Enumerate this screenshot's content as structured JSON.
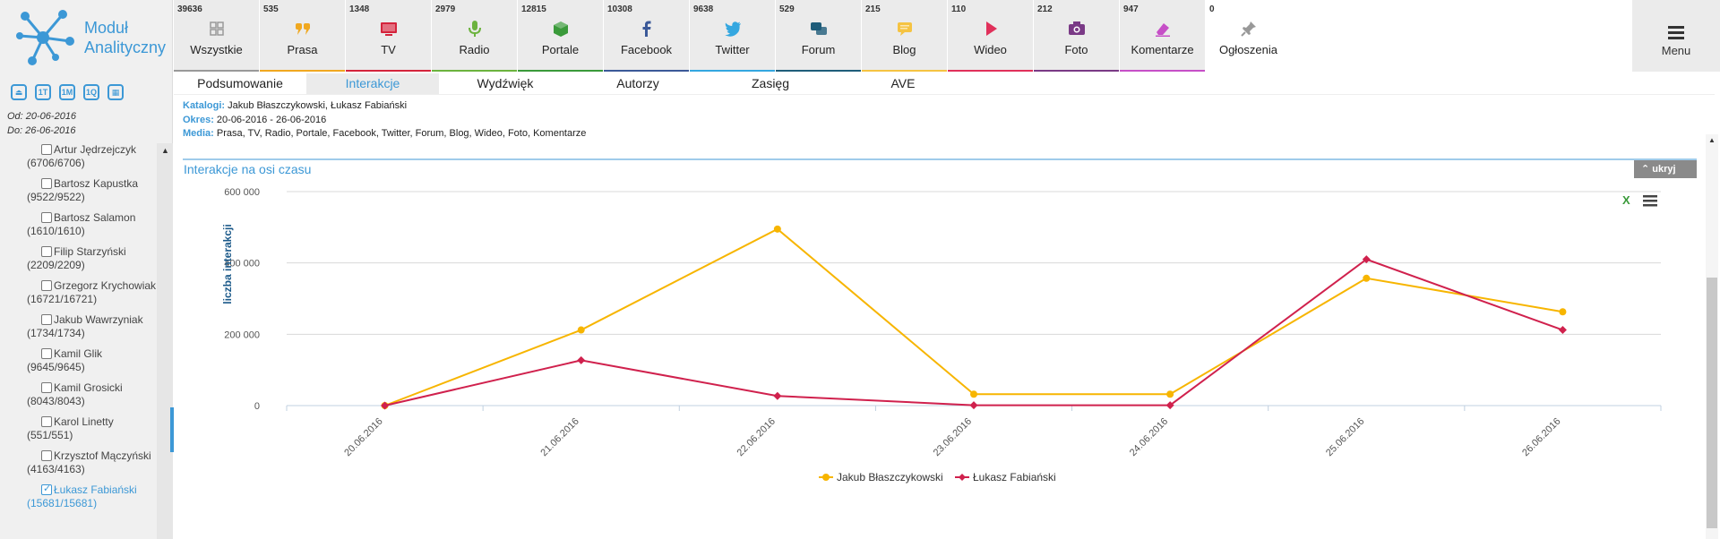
{
  "app": {
    "logo_line1": "Moduł",
    "logo_line2": "Analityczny"
  },
  "period_icons": [
    {
      "label": "⏏",
      "name": "period-custom-icon"
    },
    {
      "label": "1T",
      "name": "period-1-week-icon"
    },
    {
      "label": "1M",
      "name": "period-1-month-icon"
    },
    {
      "label": "1Q",
      "name": "period-1-quarter-icon"
    },
    {
      "label": "▦",
      "name": "calendar-icon"
    }
  ],
  "dates": {
    "from": "Od: 20-06-2016",
    "to": "Do: 26-06-2016"
  },
  "authors": [
    {
      "name": "Artur Jędrzejczyk",
      "count": "(6706/6706)",
      "checked": false
    },
    {
      "name": "Bartosz Kapustka",
      "count": "(9522/9522)",
      "checked": false
    },
    {
      "name": "Bartosz Salamon",
      "count": "(1610/1610)",
      "checked": false
    },
    {
      "name": "Filip Starzyński",
      "count": "(2209/2209)",
      "checked": false
    },
    {
      "name": "Grzegorz Krychowiak",
      "count": "(16721/16721)",
      "checked": false
    },
    {
      "name": "Jakub Wawrzyniak",
      "count": "(1734/1734)",
      "checked": false
    },
    {
      "name": "Kamil Glik",
      "count": "(9645/9645)",
      "checked": false
    },
    {
      "name": "Kamil Grosicki",
      "count": "(8043/8043)",
      "checked": false
    },
    {
      "name": "Karol Linetty",
      "count": "(551/551)",
      "checked": false
    },
    {
      "name": "Krzysztof Mączyński",
      "count": "(4163/4163)",
      "checked": false
    },
    {
      "name": "Łukasz Fabiański",
      "count": "(15681/15681)",
      "checked": true
    }
  ],
  "media_tabs": [
    {
      "count": "39636",
      "label": "Wszystkie",
      "icon": "grid-icon",
      "color": "#999999",
      "active": false
    },
    {
      "count": "535",
      "label": "Prasa",
      "icon": "quote-icon",
      "color": "#f0a820",
      "active": false
    },
    {
      "count": "1348",
      "label": "TV",
      "icon": "tv-icon",
      "color": "#d4243c",
      "active": false
    },
    {
      "count": "2979",
      "label": "Radio",
      "icon": "microphone-icon",
      "color": "#6cb33e",
      "active": false
    },
    {
      "count": "12815",
      "label": "Portale",
      "icon": "cube-icon",
      "color": "#3a9a3a",
      "active": false
    },
    {
      "count": "10308",
      "label": "Facebook",
      "icon": "facebook-icon",
      "color": "#3b5998",
      "active": false
    },
    {
      "count": "9638",
      "label": "Twitter",
      "icon": "twitter-icon",
      "color": "#34a7e0",
      "active": false
    },
    {
      "count": "529",
      "label": "Forum",
      "icon": "chat-icon",
      "color": "#1f5d7a",
      "active": false
    },
    {
      "count": "215",
      "label": "Blog",
      "icon": "comment-icon",
      "color": "#f5c342",
      "active": false
    },
    {
      "count": "110",
      "label": "Wideo",
      "icon": "play-icon",
      "color": "#e0305a",
      "active": false
    },
    {
      "count": "212",
      "label": "Foto",
      "icon": "camera-icon",
      "color": "#7a3a86",
      "active": false
    },
    {
      "count": "947",
      "label": "Komentarze",
      "icon": "eraser-icon",
      "color": "#c64fc7",
      "active": false
    },
    {
      "count": "0",
      "label": "Ogłoszenia",
      "icon": "pin-icon",
      "color": "#999999",
      "active": true
    }
  ],
  "menu_label": "Menu",
  "sub_tabs": [
    {
      "label": "Podsumowanie",
      "active": false
    },
    {
      "label": "Interakcje",
      "active": true
    },
    {
      "label": "Wydźwięk",
      "active": false
    },
    {
      "label": "Autorzy",
      "active": false
    },
    {
      "label": "Zasięg",
      "active": false
    },
    {
      "label": "AVE",
      "active": false
    }
  ],
  "filters": {
    "katalogi_key": "Katalogi:",
    "katalogi_val": " Jakub Błaszczykowski, Łukasz Fabiański",
    "okres_key": "Okres:",
    "okres_val": " 20-06-2016 - 26-06-2016",
    "media_key": "Media:",
    "media_val": " Prasa, TV, Radio, Portale, Facebook, Twitter, Forum, Blog, Wideo, Foto, Komentarze"
  },
  "panel": {
    "title": "Interakcje na osi czasu",
    "hide_label": "ukryj"
  },
  "chart_data": {
    "type": "line",
    "categories": [
      "20.06.2016",
      "21.06.2016",
      "22.06.2016",
      "23.06.2016",
      "24.06.2016",
      "25.06.2016",
      "26.06.2016"
    ],
    "ylabel": "liczba interakcji",
    "ylim": [
      0,
      600000
    ],
    "yticks": [
      0,
      200000,
      400000,
      600000
    ],
    "ytick_labels": [
      "0",
      "200 000",
      "400 000",
      "600 000"
    ],
    "grid": true,
    "legend_position": "bottom-center",
    "series": [
      {
        "name": "Jakub Błaszczykowski",
        "color": "#f7b500",
        "marker": "circle",
        "values": [
          0,
          212000,
          495000,
          32000,
          32000,
          357000,
          263000
        ]
      },
      {
        "name": "Łukasz Fabiański",
        "color": "#d0214d",
        "marker": "diamond",
        "values": [
          0,
          127000,
          27000,
          1000,
          1000,
          410000,
          212000
        ]
      }
    ]
  }
}
